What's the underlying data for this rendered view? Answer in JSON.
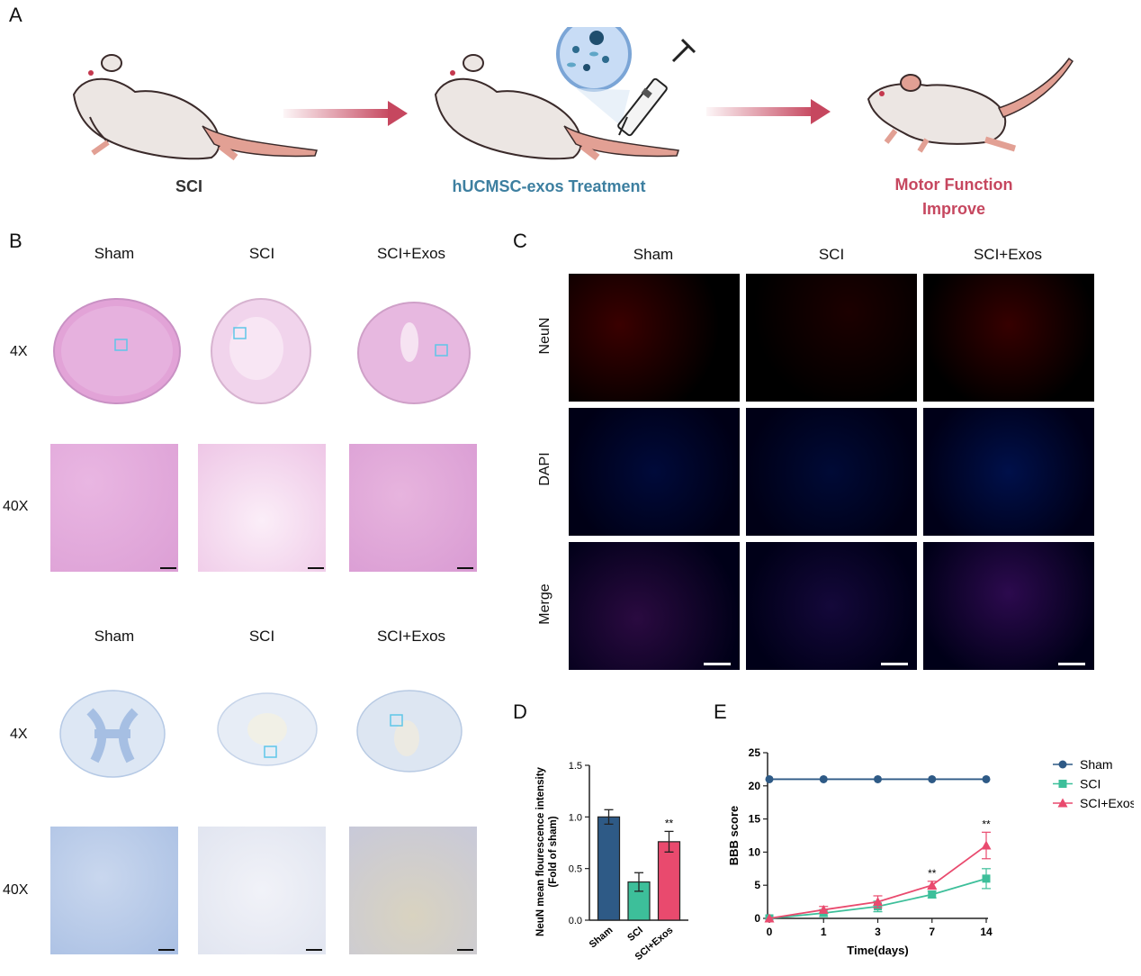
{
  "panels": {
    "A": "A",
    "B": "B",
    "C": "C",
    "D": "D",
    "E": "E"
  },
  "panel_a": {
    "stage1": "SCI",
    "stage2": "hUCMSC-exos Treatment",
    "stage3_line1": "Motor Function",
    "stage3_line2": "Improve",
    "colors": {
      "stage1": "#333333",
      "stage2": "#3d7fa0",
      "stage3": "#c6475f",
      "arrow": "#c6475f"
    }
  },
  "panel_b": {
    "he_cols": [
      "Sham",
      "SCI",
      "SCI+Exos"
    ],
    "nissl_cols": [
      "Sham",
      "SCI",
      "SCI+Exos"
    ],
    "rows": {
      "he_4x": "4X",
      "he_40x": "40X",
      "nissl_4x": "4X",
      "nissl_40x": "40X"
    }
  },
  "panel_c": {
    "cols": [
      "Sham",
      "SCI",
      "SCI+Exos"
    ],
    "rows": [
      "NeuN",
      "DAPI",
      "Merge"
    ]
  },
  "chart_data": [
    {
      "type": "bar",
      "categories": [
        "Sham",
        "SCI",
        "SCI+Exos"
      ],
      "values": [
        1.0,
        0.37,
        0.76
      ],
      "errors": [
        0.07,
        0.09,
        0.1
      ],
      "colors": [
        "#2e5a86",
        "#3dbf9a",
        "#e94a6e"
      ],
      "ylabel_line1": "NeuN mean flourescence intensity",
      "ylabel_line2": "(Fold of sham)",
      "ylim": [
        0,
        1.5
      ],
      "yticks": [
        "0.0",
        "0.5",
        "1.0",
        "1.5"
      ],
      "significance": [
        {
          "category": "SCI+Exos",
          "label": "**"
        }
      ]
    },
    {
      "type": "line",
      "x": [
        0,
        1,
        3,
        7,
        14
      ],
      "xticks": [
        "0",
        "1",
        "3",
        "7",
        "14"
      ],
      "xlabel": "Time(days)",
      "ylabel": "BBB score",
      "ylim": [
        0,
        25
      ],
      "yticks": [
        "0",
        "5",
        "10",
        "15",
        "20",
        "25"
      ],
      "series": [
        {
          "name": "Sham",
          "values": [
            21,
            21,
            21,
            21,
            21
          ],
          "errors": [
            0,
            0,
            0,
            0,
            0
          ],
          "color": "#2e5a86",
          "marker": "circle"
        },
        {
          "name": "SCI",
          "values": [
            0,
            0.8,
            1.8,
            3.6,
            6.0
          ],
          "errors": [
            0,
            0.5,
            0.8,
            0.5,
            1.5
          ],
          "color": "#3dbf9a",
          "marker": "square"
        },
        {
          "name": "SCI+Exos",
          "values": [
            0,
            1.3,
            2.5,
            5.0,
            11.0
          ],
          "errors": [
            0,
            0.5,
            0.9,
            0.6,
            2.0
          ],
          "color": "#e94a6e",
          "marker": "triangle"
        }
      ],
      "significance": [
        {
          "x": 7,
          "label": "**"
        },
        {
          "x": 14,
          "label": "**"
        }
      ],
      "legend_position": "right"
    }
  ]
}
